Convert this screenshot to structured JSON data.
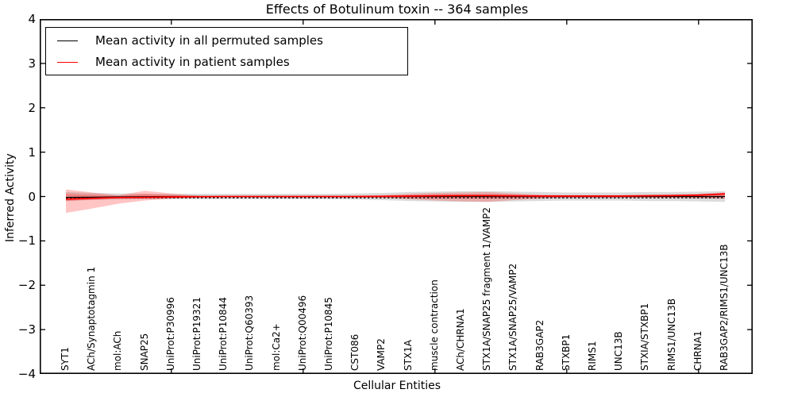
{
  "title": "Effects of Botulinum toxin -- 364 samples",
  "legend": {
    "position": "upper left",
    "items": [
      {
        "label": "Mean activity in all permuted samples",
        "color": "#000000"
      },
      {
        "label": "Mean activity in patient samples",
        "color": "#ff0000"
      }
    ]
  },
  "axes": {
    "xlabel": "Cellular Entities",
    "ylabel": "Inferred Activity",
    "ylim": [
      -4,
      4
    ],
    "ytick_values": [
      4,
      3,
      2,
      1,
      0,
      -1,
      -2,
      -3,
      -4
    ],
    "ytick_labels": [
      "4",
      "3",
      "2",
      "1",
      "0",
      "−1",
      "−2",
      "−3",
      "−4"
    ]
  },
  "colors": {
    "background": "#ffffff",
    "frame": "#000000",
    "permuted_line": "#000000",
    "patient_line": "#ff0000",
    "permuted_band": "#999999",
    "patient_band": "#ff2a2a"
  },
  "chart_data": {
    "type": "line",
    "title": "Effects of Botulinum toxin -- 364 samples",
    "xlabel": "Cellular Entities",
    "ylabel": "Inferred Activity",
    "ylim": [
      -4,
      4
    ],
    "grid": false,
    "legend_position": "upper left",
    "x_major_tick_indices": [
      4,
      9,
      14,
      19,
      24
    ],
    "categories": [
      "SYT1",
      "ACh/Synaptotagmin 1",
      "mol:ACh",
      "SNAP25",
      "UniProt:P30996",
      "UniProt:P19321",
      "UniProt:P10844",
      "UniProt:Q60393",
      "mol:Ca2+",
      "UniProt:Q00496",
      "UniProt:P10845",
      "CST086",
      "VAMP2",
      "STX1A",
      "muscle contraction",
      "ACh/CHRNA1",
      "STX1A/SNAP25 fragment 1/VAMP2",
      "STX1A/SNAP25/VAMP2",
      "RAB3GAP2",
      "STXBP1",
      "RIMS1",
      "UNC13B",
      "STXIA/STXBP1",
      "RIMS1/UNC13B",
      "CHRNA1",
      "RAB3GAP2/RIMS1/UNC13B"
    ],
    "series": [
      {
        "name": "Mean activity in all permuted samples",
        "color": "#000000",
        "style": "solid",
        "values": [
          -0.02,
          -0.015,
          -0.01,
          -0.005,
          0,
          0,
          0,
          0,
          0,
          0,
          0,
          0,
          0,
          0,
          0,
          0,
          0,
          0,
          0,
          0,
          0,
          0,
          0,
          0,
          0,
          0
        ]
      },
      {
        "name": "Mean activity in patient samples",
        "color": "#ff0000",
        "style": "solid",
        "values": [
          -0.06,
          -0.04,
          -0.025,
          -0.02,
          -0.01,
          -0.005,
          0,
          0,
          0,
          0,
          0,
          0,
          0.005,
          0.01,
          0.015,
          0.02,
          0.02,
          0.015,
          0.01,
          0.01,
          0.01,
          0.01,
          0.015,
          0.02,
          0.03,
          0.06
        ]
      }
    ],
    "zero_line": {
      "style": "dashed",
      "color": "#000000",
      "y": 0
    },
    "bands": [
      {
        "name": "permuted-std-band",
        "color": "#999999",
        "opacity": 0.35,
        "upper": [
          0.1,
          0.08,
          0.07,
          0.06,
          0.06,
          0.06,
          0.06,
          0.06,
          0.06,
          0.06,
          0.06,
          0.07,
          0.08,
          0.1,
          0.11,
          0.12,
          0.12,
          0.11,
          0.1,
          0.09,
          0.09,
          0.09,
          0.1,
          0.1,
          0.11,
          0.12
        ],
        "lower": [
          -0.1,
          -0.08,
          -0.07,
          -0.06,
          -0.06,
          -0.06,
          -0.06,
          -0.06,
          -0.06,
          -0.06,
          -0.06,
          -0.07,
          -0.08,
          -0.1,
          -0.11,
          -0.12,
          -0.12,
          -0.11,
          -0.1,
          -0.09,
          -0.09,
          -0.09,
          -0.1,
          -0.1,
          -0.11,
          -0.12
        ]
      },
      {
        "name": "patient-band-outer",
        "color": "#ff2a2a",
        "opacity": 0.27,
        "upper": [
          0.16,
          0.09,
          0.03,
          0.13,
          0.07,
          0.02,
          0.01,
          0.01,
          0.01,
          0.01,
          0.01,
          0.02,
          0.03,
          0.06,
          0.08,
          0.09,
          0.1,
          0.07,
          0.04,
          0.03,
          0.03,
          0.03,
          0.04,
          0.05,
          0.06,
          0.09
        ],
        "lower": [
          -0.37,
          -0.27,
          -0.16,
          -0.09,
          -0.05,
          -0.02,
          -0.01,
          -0.01,
          -0.01,
          -0.01,
          -0.01,
          -0.02,
          -0.03,
          -0.06,
          -0.09,
          -0.11,
          -0.12,
          -0.08,
          -0.05,
          -0.03,
          -0.03,
          -0.03,
          -0.03,
          -0.03,
          -0.04,
          -0.05
        ]
      },
      {
        "name": "patient-band-inner",
        "color": "#ff2a2a",
        "opacity": 0.3,
        "upper": [
          0.06,
          0.04,
          0.02,
          0.06,
          0.03,
          0.01,
          0.005,
          0.005,
          0.005,
          0.005,
          0.005,
          0.01,
          0.015,
          0.03,
          0.04,
          0.045,
          0.05,
          0.035,
          0.02,
          0.015,
          0.015,
          0.015,
          0.02,
          0.025,
          0.03,
          0.06
        ],
        "lower": [
          -0.1,
          -0.07,
          -0.04,
          -0.04,
          -0.02,
          -0.01,
          -0.005,
          -0.005,
          -0.005,
          -0.005,
          -0.005,
          -0.01,
          -0.015,
          -0.03,
          -0.04,
          -0.045,
          -0.05,
          -0.035,
          -0.02,
          -0.015,
          -0.015,
          -0.015,
          -0.015,
          -0.02,
          -0.025,
          -0.035
        ]
      }
    ]
  }
}
